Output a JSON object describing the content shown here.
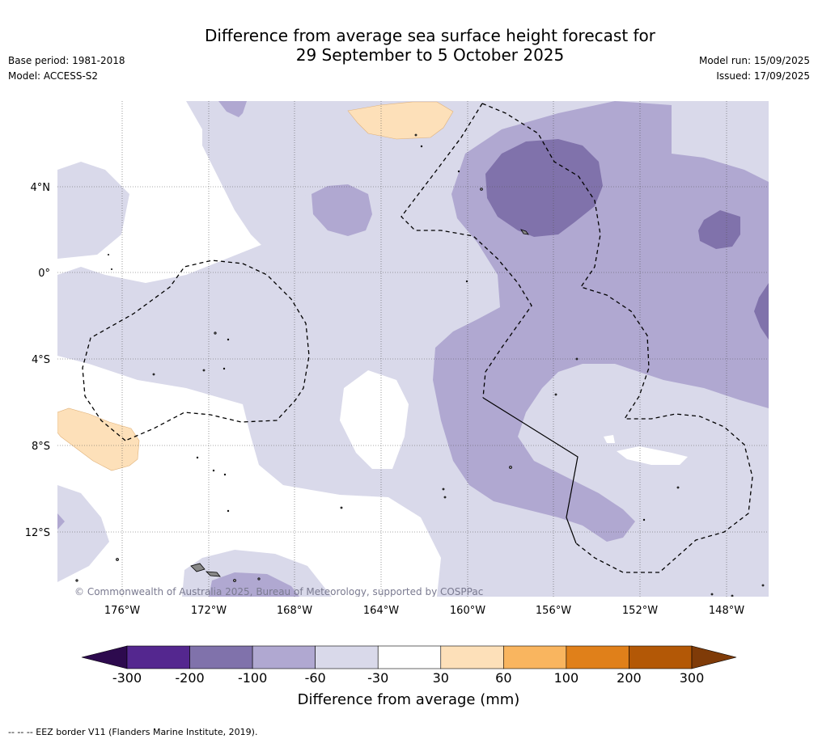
{
  "title": {
    "line1": "Difference from average sea surface height forecast for",
    "line2": "29 September to 5 October 2025"
  },
  "meta_left": {
    "base_period": "Base period: 1981-2018",
    "model": "Model: ACCESS-S2"
  },
  "meta_right": {
    "model_run": "Model run: 15/09/2025",
    "issued": "Issued: 17/09/2025"
  },
  "map": {
    "lat_labels": [
      "4°N",
      "0°",
      "4°S",
      "8°S",
      "12°S"
    ],
    "lon_labels": [
      "176°W",
      "172°W",
      "168°W",
      "164°W",
      "160°W",
      "156°W",
      "152°W",
      "148°W"
    ],
    "copyright": "© Commonwealth of Australia 2025, Bureau of Meteorology, supported by COSPPac"
  },
  "colorbar": {
    "ticks": [
      "-300",
      "-200",
      "-100",
      "-60",
      "-30",
      "30",
      "60",
      "100",
      "200",
      "300"
    ],
    "colors": [
      "#2d0a4e",
      "#54278f",
      "#8072ab",
      "#b0a8d1",
      "#d9d9ea",
      "#ffffff",
      "#fde0b9",
      "#f9b55f",
      "#e0801a",
      "#b35806",
      "#7f3b08"
    ],
    "label": "Difference from average (mm)"
  },
  "footnote": "--  --  -- EEZ border V11 (Flanders Marine Institute, 2019)."
}
